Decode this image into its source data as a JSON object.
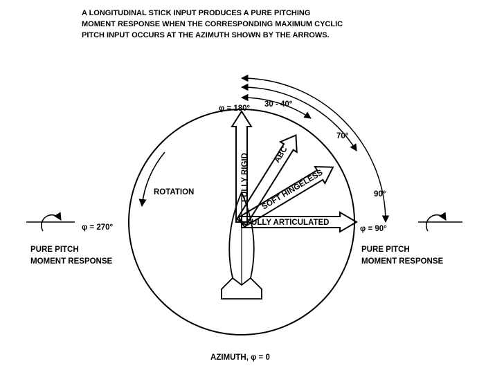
{
  "caption": {
    "line1": "A  LONGITUDINAL STICK INPUT PRODUCES A PURE PITCHING",
    "line2": "MOMENT RESPONSE WHEN THE CORRESPONDING MAXIMUM CYCLIC",
    "line3": "PITCH INPUT OCCURS AT THE AZIMUTH SHOWN BY THE ARROWS."
  },
  "azimuth": {
    "top": "φ = 180°",
    "right": "φ = 90°",
    "left": "φ = 270°",
    "bottom": "AZIMUTH, φ = 0"
  },
  "arcs": {
    "a1": "30 - 40°",
    "a2": "70°",
    "a3": "90°"
  },
  "arrows": {
    "rigid": "FULLY RIGID",
    "abc": "ABC",
    "soft": "SOFT HINGELESS",
    "articulated": "FULLY ARTICULATED"
  },
  "rotation": "ROTATION",
  "response_left": {
    "line1": "PURE PITCH",
    "line2": "MOMENT RESPONSE"
  },
  "response_right": {
    "line1": "PURE PITCH",
    "line2": "MOMENT RESPONSE"
  }
}
